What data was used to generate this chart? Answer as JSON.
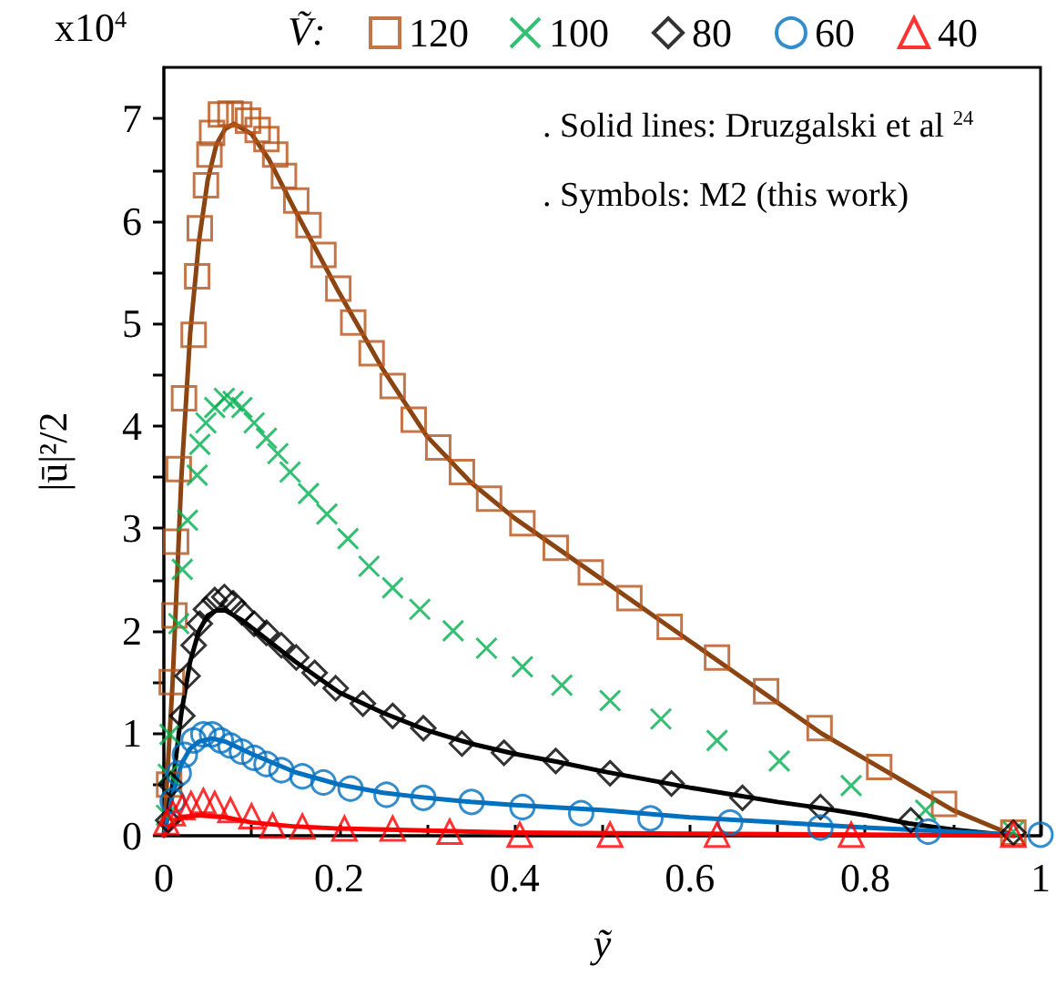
{
  "chart_data": {
    "type": "scatter",
    "xlabel": "ỹ",
    "ylabel": "|ū|²/2",
    "legend_title": "Ṽ:",
    "legend": "top",
    "annotations": [
      "x10$^{4}$",
      ". Solid lines: Druzgalski et al $^{24}$",
      ". Symbols: M2 (this work)"
    ],
    "xlim": [
      0,
      1
    ],
    "ylim": [
      0,
      7.5
    ],
    "xticks": [
      0,
      {
        "value": 0.1,
        "label": null
      },
      0.2,
      {
        "value": 0.3,
        "label": null
      },
      0.4,
      {
        "value": 0.5,
        "label": null
      },
      0.6,
      {
        "value": 0.7,
        "label": null
      },
      0.8,
      {
        "value": 0.9,
        "label": null
      },
      1
    ],
    "yticks": [
      0,
      {
        "value": 0.5,
        "label": null
      },
      1,
      {
        "value": 1.5,
        "label": null
      },
      2,
      {
        "value": 2.5,
        "label": null
      },
      3,
      {
        "value": 3.5,
        "label": null
      },
      4,
      {
        "value": 4.5,
        "label": null
      },
      5,
      {
        "value": 5.5,
        "label": null
      },
      6,
      {
        "value": 6.5,
        "label": null
      },
      7
    ],
    "series": [
      {
        "type": "line",
        "marker": "none",
        "color": "#8b4513",
        "x": [
          0,
          0.01,
          0.02,
          0.03,
          0.04,
          0.05,
          0.06,
          0.07,
          0.08,
          0.1,
          0.12,
          0.15,
          0.2,
          0.25,
          0.3,
          0.35,
          0.4,
          0.45,
          0.5,
          0.55,
          0.6,
          0.65,
          0.7,
          0.75,
          0.8,
          0.85,
          0.9,
          0.97
        ],
        "values": [
          0,
          1.5,
          3.5,
          4.9,
          5.8,
          6.4,
          6.75,
          6.9,
          6.95,
          6.85,
          6.6,
          6.1,
          5.3,
          4.55,
          3.9,
          3.45,
          3.1,
          2.8,
          2.5,
          2.2,
          1.9,
          1.6,
          1.3,
          1.0,
          0.75,
          0.5,
          0.25,
          0
        ]
      },
      {
        "type": "line",
        "marker": "none",
        "color": "#000000",
        "x": [
          0,
          0.01,
          0.02,
          0.03,
          0.04,
          0.05,
          0.06,
          0.07,
          0.09,
          0.12,
          0.15,
          0.2,
          0.25,
          0.3,
          0.35,
          0.4,
          0.45,
          0.5,
          0.55,
          0.6,
          0.65,
          0.7,
          0.75,
          0.8,
          0.85,
          0.9,
          0.97
        ],
        "values": [
          0,
          0.5,
          1.2,
          1.7,
          2.0,
          2.15,
          2.2,
          2.2,
          2.1,
          1.9,
          1.7,
          1.4,
          1.2,
          1.03,
          0.9,
          0.8,
          0.72,
          0.63,
          0.55,
          0.47,
          0.4,
          0.33,
          0.27,
          0.2,
          0.12,
          0.06,
          0
        ]
      },
      {
        "type": "line",
        "marker": "none",
        "color": "#0070c0",
        "x": [
          0,
          0.01,
          0.02,
          0.03,
          0.04,
          0.055,
          0.07,
          0.1,
          0.15,
          0.2,
          0.25,
          0.3,
          0.35,
          0.4,
          0.5,
          0.6,
          0.7,
          0.8,
          0.9,
          0.97
        ],
        "values": [
          0,
          0.4,
          0.7,
          0.85,
          0.92,
          0.95,
          0.92,
          0.8,
          0.62,
          0.5,
          0.42,
          0.37,
          0.33,
          0.3,
          0.25,
          0.18,
          0.13,
          0.08,
          0.04,
          0.01
        ]
      },
      {
        "type": "line",
        "marker": "none",
        "color": "#ff0000",
        "x": [
          0,
          0.01,
          0.02,
          0.04,
          0.07,
          0.1,
          0.15,
          0.2,
          0.3,
          0.4,
          0.6,
          0.8,
          0.97
        ],
        "values": [
          0,
          0.12,
          0.18,
          0.2,
          0.18,
          0.13,
          0.09,
          0.07,
          0.05,
          0.03,
          0.02,
          0.01,
          0
        ]
      },
      {
        "name": "120",
        "marker": "square",
        "color": "#b5541c",
        "x": [
          0.006,
          0.009,
          0.012,
          0.014,
          0.017,
          0.023,
          0.034,
          0.038,
          0.041,
          0.048,
          0.052,
          0.055,
          0.065,
          0.076,
          0.086,
          0.096,
          0.107,
          0.117,
          0.127,
          0.137,
          0.151,
          0.165,
          0.182,
          0.199,
          0.216,
          0.237,
          0.261,
          0.285,
          0.313,
          0.34,
          0.371,
          0.409,
          0.447,
          0.487,
          0.531,
          0.577,
          0.631,
          0.687,
          0.748,
          0.816,
          0.89,
          0.969
        ],
        "values": [
          0.5,
          1.5,
          2.15,
          2.87,
          3.58,
          4.27,
          4.89,
          5.46,
          5.93,
          6.35,
          6.65,
          6.86,
          7.04,
          7.05,
          7.04,
          6.98,
          6.89,
          6.8,
          6.65,
          6.44,
          6.2,
          5.96,
          5.67,
          5.34,
          5.01,
          4.71,
          4.39,
          4.06,
          3.79,
          3.55,
          3.29,
          3.05,
          2.81,
          2.57,
          2.32,
          2.04,
          1.74,
          1.41,
          1.05,
          0.67,
          0.31,
          0.03
        ]
      },
      {
        "name": "100",
        "marker": "cross",
        "color": "#00b050",
        "x": [
          0.003,
          0.005,
          0.007,
          0.017,
          0.021,
          0.027,
          0.038,
          0.041,
          0.048,
          0.058,
          0.069,
          0.079,
          0.089,
          0.103,
          0.117,
          0.13,
          0.144,
          0.165,
          0.186,
          0.21,
          0.234,
          0.261,
          0.292,
          0.33,
          0.368,
          0.409,
          0.454,
          0.509,
          0.567,
          0.631,
          0.702,
          0.784,
          0.869,
          0.969
        ],
        "values": [
          0.2,
          0.6,
          0.99,
          2.07,
          2.6,
          3.08,
          3.52,
          3.82,
          4.03,
          4.18,
          4.27,
          4.24,
          4.18,
          4.03,
          3.88,
          3.73,
          3.55,
          3.34,
          3.14,
          2.9,
          2.63,
          2.42,
          2.21,
          2.0,
          1.83,
          1.65,
          1.47,
          1.32,
          1.14,
          0.93,
          0.73,
          0.49,
          0.25,
          0.04
        ]
      },
      {
        "name": "80",
        "marker": "diamond",
        "color": "#000000",
        "x": [
          0.005,
          0.008,
          0.021,
          0.027,
          0.034,
          0.041,
          0.048,
          0.058,
          0.069,
          0.079,
          0.089,
          0.103,
          0.117,
          0.134,
          0.151,
          0.172,
          0.196,
          0.227,
          0.261,
          0.296,
          0.34,
          0.388,
          0.447,
          0.509,
          0.579,
          0.66,
          0.749,
          0.852,
          0.969
        ],
        "values": [
          0.15,
          0.5,
          1.17,
          1.56,
          1.86,
          2.07,
          2.21,
          2.3,
          2.33,
          2.27,
          2.18,
          2.07,
          1.98,
          1.86,
          1.74,
          1.59,
          1.44,
          1.29,
          1.17,
          1.05,
          0.9,
          0.81,
          0.73,
          0.61,
          0.51,
          0.37,
          0.28,
          0.15,
          0.03
        ]
      },
      {
        "name": "60",
        "marker": "circle",
        "color": "#0070c0",
        "x": [
          0.01,
          0.017,
          0.024,
          0.034,
          0.045,
          0.055,
          0.065,
          0.076,
          0.089,
          0.103,
          0.117,
          0.134,
          0.158,
          0.182,
          0.213,
          0.254,
          0.296,
          0.351,
          0.409,
          0.476,
          0.555,
          0.646,
          0.749,
          0.872,
          1.0
        ],
        "values": [
          0.34,
          0.61,
          0.79,
          0.93,
          0.99,
          0.99,
          0.93,
          0.88,
          0.82,
          0.76,
          0.7,
          0.64,
          0.58,
          0.52,
          0.46,
          0.4,
          0.37,
          0.33,
          0.28,
          0.22,
          0.17,
          0.13,
          0.08,
          0.04,
          0.01
        ]
      },
      {
        "name": "40",
        "marker": "triangle",
        "color": "#ff0000",
        "x": [
          0.003,
          0.01,
          0.021,
          0.031,
          0.045,
          0.058,
          0.076,
          0.1,
          0.124,
          0.158,
          0.206,
          0.261,
          0.326,
          0.406,
          0.509,
          0.631,
          0.784,
          0.969
        ],
        "values": [
          0.13,
          0.22,
          0.28,
          0.31,
          0.34,
          0.31,
          0.25,
          0.19,
          0.1,
          0.09,
          0.07,
          0.07,
          0.04,
          0.01,
          0.01,
          0.01,
          0.01,
          0.01
        ]
      }
    ]
  }
}
